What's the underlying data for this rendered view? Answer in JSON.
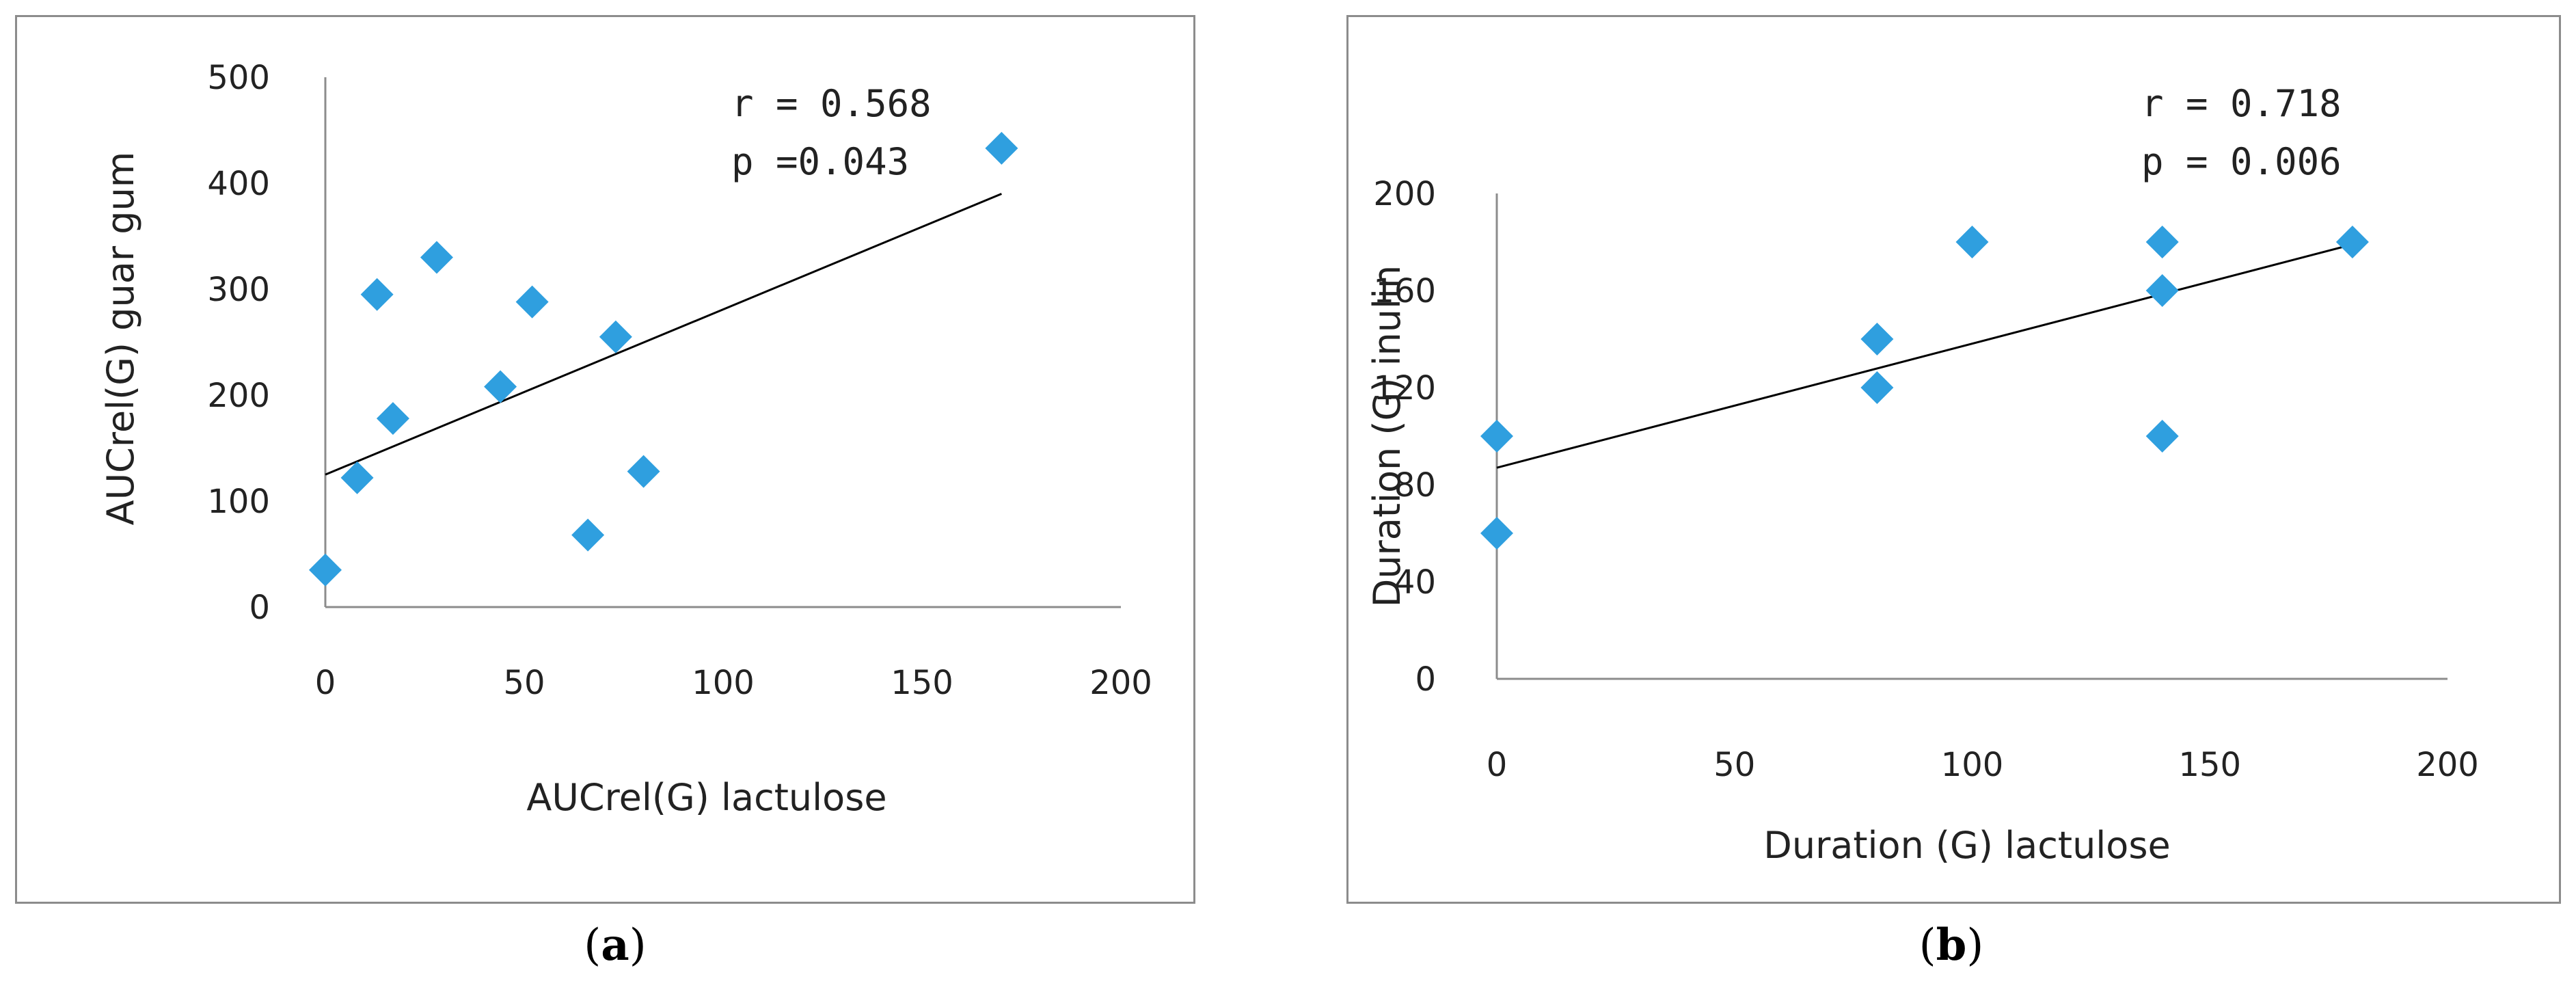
{
  "chart_data": [
    {
      "type": "scatter",
      "panel_label": "a",
      "xlabel": "AUCrel(G) lactulose",
      "ylabel": "AUCrel(G) guar gum",
      "xlim": [
        0,
        200
      ],
      "ylim": [
        0,
        500
      ],
      "xticks": [
        0,
        50,
        100,
        150,
        200
      ],
      "yticks": [
        0,
        100,
        200,
        300,
        400,
        500
      ],
      "grid": false,
      "marker_color": "#2f9fdf",
      "annotation_r": "r = 0.568",
      "annotation_p": "p =0.043",
      "trendline": {
        "x": [
          0,
          170
        ],
        "y": [
          125,
          390
        ]
      },
      "points": [
        {
          "x": 0,
          "y": 35
        },
        {
          "x": 8,
          "y": 122
        },
        {
          "x": 13,
          "y": 295
        },
        {
          "x": 17,
          "y": 178
        },
        {
          "x": 28,
          "y": 330
        },
        {
          "x": 44,
          "y": 208
        },
        {
          "x": 52,
          "y": 288
        },
        {
          "x": 66,
          "y": 68
        },
        {
          "x": 73,
          "y": 255
        },
        {
          "x": 80,
          "y": 128
        },
        {
          "x": 170,
          "y": 433
        }
      ]
    },
    {
      "type": "scatter",
      "panel_label": "b",
      "xlabel": "Duration (G) lactulose",
      "ylabel": "Duration (G) inulin",
      "xlim": [
        0,
        200
      ],
      "ylim": [
        0,
        200
      ],
      "xticks": [
        0,
        50,
        100,
        150,
        200
      ],
      "yticks": [
        0,
        40,
        80,
        120,
        160,
        200
      ],
      "grid": false,
      "marker_color": "#2f9fdf",
      "annotation_r": "r = 0.718",
      "annotation_p": "p = 0.006",
      "trendline": {
        "x": [
          0,
          180
        ],
        "y": [
          87,
          179
        ]
      },
      "points": [
        {
          "x": 0,
          "y": 100
        },
        {
          "x": 0,
          "y": 60
        },
        {
          "x": 80,
          "y": 140
        },
        {
          "x": 80,
          "y": 120
        },
        {
          "x": 100,
          "y": 180
        },
        {
          "x": 140,
          "y": 180
        },
        {
          "x": 140,
          "y": 160
        },
        {
          "x": 140,
          "y": 100
        },
        {
          "x": 180,
          "y": 180
        }
      ]
    }
  ]
}
